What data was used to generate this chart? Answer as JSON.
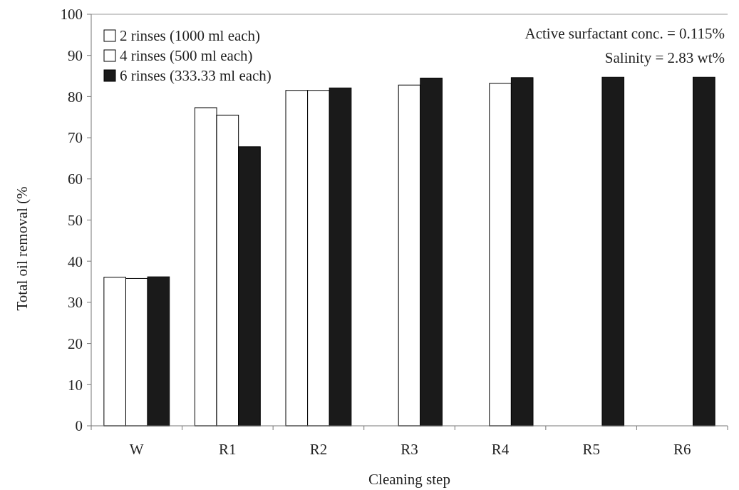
{
  "chart_data": {
    "type": "bar",
    "xlabel": "Cleaning step",
    "ylabel": "Total oil removal (%",
    "categories": [
      "W",
      "R1",
      "R2",
      "R3",
      "R4",
      "R5",
      "R6"
    ],
    "series": [
      {
        "name": "2 rinses (1000 ml each)",
        "color": "#ffffff",
        "values": [
          36.1,
          77.3,
          81.5,
          null,
          null,
          null,
          null
        ]
      },
      {
        "name": "4 rinses (500 ml each)",
        "color": "#ffffff",
        "values": [
          35.8,
          75.5,
          81.5,
          82.8,
          83.2,
          null,
          null
        ]
      },
      {
        "name": "6 rinses (333.33 ml each)",
        "color": "#1a1a1a",
        "values": [
          36.2,
          67.8,
          82.1,
          84.5,
          84.6,
          84.7,
          84.7
        ]
      }
    ],
    "ylim": [
      0,
      100
    ],
    "yticks": [
      0,
      10,
      20,
      30,
      40,
      50,
      60,
      70,
      80,
      90,
      100
    ],
    "grid": false,
    "legend": "top left",
    "annotations": [
      "Active surfactant conc. = 0.115%",
      "Salinity =  2.83 wt%"
    ]
  }
}
